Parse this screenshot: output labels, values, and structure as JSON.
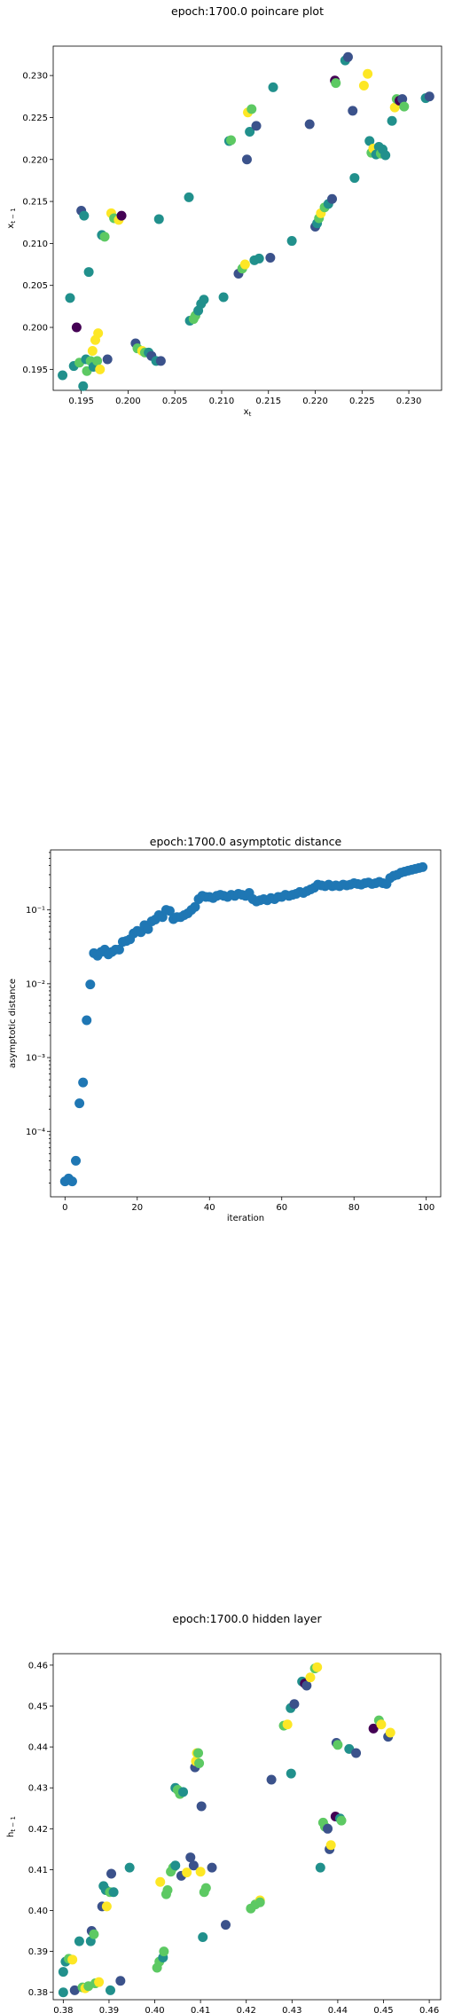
{
  "colors": {
    "palette": [
      "#440154",
      "#3b528b",
      "#21908c",
      "#5dc963",
      "#fde725"
    ],
    "blue": "#1f77b4"
  },
  "chart_data": [
    {
      "type": "scatter",
      "title": "epoch:1700.0 poincare plot",
      "xlabel": "x_t",
      "ylabel": "x_{t-1}",
      "xlim": [
        0.192,
        0.2335
      ],
      "ylim": [
        0.1925,
        0.2335
      ],
      "xticks": [
        "0.195",
        "0.200",
        "0.205",
        "0.210",
        "0.215",
        "0.220",
        "0.225",
        "0.230"
      ],
      "xtick_values": [
        0.195,
        0.2,
        0.205,
        0.21,
        0.215,
        0.22,
        0.225,
        0.23
      ],
      "yticks": [
        "0.195",
        "0.200",
        "0.205",
        "0.210",
        "0.215",
        "0.220",
        "0.225",
        "0.230"
      ],
      "ytick_values": [
        0.195,
        0.2,
        0.205,
        0.21,
        0.215,
        0.22,
        0.225,
        0.23
      ],
      "points": [
        [
          0.193,
          0.1943,
          2
        ],
        [
          0.1938,
          0.2035,
          2
        ],
        [
          0.1942,
          0.1954,
          2
        ],
        [
          0.1945,
          0.2,
          0
        ],
        [
          0.1948,
          0.1958,
          3
        ],
        [
          0.195,
          0.2139,
          1
        ],
        [
          0.1952,
          0.193,
          2
        ],
        [
          0.1953,
          0.2133,
          2
        ],
        [
          0.1955,
          0.1962,
          2
        ],
        [
          0.1956,
          0.1948,
          3
        ],
        [
          0.1958,
          0.2066,
          2
        ],
        [
          0.196,
          0.196,
          3
        ],
        [
          0.1962,
          0.1972,
          4
        ],
        [
          0.1963,
          0.1953,
          2
        ],
        [
          0.1965,
          0.1985,
          4
        ],
        [
          0.1967,
          0.196,
          3
        ],
        [
          0.1968,
          0.1993,
          4
        ],
        [
          0.197,
          0.195,
          4
        ],
        [
          0.1972,
          0.211,
          2
        ],
        [
          0.1975,
          0.2108,
          3
        ],
        [
          0.1978,
          0.1962,
          1
        ],
        [
          0.1982,
          0.2136,
          4
        ],
        [
          0.1985,
          0.213,
          3
        ],
        [
          0.199,
          0.2128,
          4
        ],
        [
          0.1993,
          0.2133,
          0
        ],
        [
          0.2008,
          0.1981,
          1
        ],
        [
          0.201,
          0.1975,
          3
        ],
        [
          0.2015,
          0.1972,
          4
        ],
        [
          0.2018,
          0.197,
          3
        ],
        [
          0.2022,
          0.197,
          2
        ],
        [
          0.2025,
          0.1966,
          1
        ],
        [
          0.203,
          0.196,
          2
        ],
        [
          0.2033,
          0.2129,
          2
        ],
        [
          0.2035,
          0.196,
          1
        ],
        [
          0.2065,
          0.2155,
          2
        ],
        [
          0.2066,
          0.2008,
          2
        ],
        [
          0.207,
          0.201,
          3
        ],
        [
          0.2072,
          0.2014,
          3
        ],
        [
          0.2075,
          0.202,
          2
        ],
        [
          0.2078,
          0.2028,
          2
        ],
        [
          0.2081,
          0.2033,
          2
        ],
        [
          0.2102,
          0.2036,
          2
        ],
        [
          0.2108,
          0.2222,
          2
        ],
        [
          0.211,
          0.2223,
          3
        ],
        [
          0.2118,
          0.2064,
          1
        ],
        [
          0.2122,
          0.207,
          3
        ],
        [
          0.2125,
          0.2075,
          4
        ],
        [
          0.2127,
          0.22,
          1
        ],
        [
          0.2128,
          0.2256,
          4
        ],
        [
          0.213,
          0.2233,
          2
        ],
        [
          0.2132,
          0.226,
          3
        ],
        [
          0.2135,
          0.208,
          2
        ],
        [
          0.2137,
          0.224,
          1
        ],
        [
          0.214,
          0.2082,
          2
        ],
        [
          0.2152,
          0.2083,
          1
        ],
        [
          0.2155,
          0.2286,
          2
        ],
        [
          0.2175,
          0.2103,
          2
        ],
        [
          0.2194,
          0.2242,
          1
        ],
        [
          0.22,
          0.212,
          1
        ],
        [
          0.2202,
          0.2124,
          2
        ],
        [
          0.2204,
          0.213,
          3
        ],
        [
          0.2206,
          0.2136,
          4
        ],
        [
          0.221,
          0.2143,
          3
        ],
        [
          0.2214,
          0.2147,
          2
        ],
        [
          0.2218,
          0.2153,
          1
        ],
        [
          0.2221,
          0.2294,
          0
        ],
        [
          0.2222,
          0.2291,
          3
        ],
        [
          0.2232,
          0.2318,
          2
        ],
        [
          0.2235,
          0.2322,
          1
        ],
        [
          0.224,
          0.2258,
          1
        ],
        [
          0.2242,
          0.2178,
          2
        ],
        [
          0.2252,
          0.2288,
          4
        ],
        [
          0.2256,
          0.2302,
          4
        ],
        [
          0.2258,
          0.2222,
          2
        ],
        [
          0.226,
          0.2208,
          3
        ],
        [
          0.2262,
          0.2213,
          4
        ],
        [
          0.2265,
          0.2206,
          2
        ],
        [
          0.2268,
          0.2215,
          2
        ],
        [
          0.227,
          0.2207,
          3
        ],
        [
          0.2272,
          0.2212,
          2
        ],
        [
          0.2275,
          0.2205,
          2
        ],
        [
          0.2282,
          0.2246,
          2
        ],
        [
          0.2285,
          0.2262,
          4
        ],
        [
          0.2287,
          0.2272,
          3
        ],
        [
          0.229,
          0.227,
          0
        ],
        [
          0.2293,
          0.2272,
          1
        ],
        [
          0.2295,
          0.2263,
          3
        ],
        [
          0.2318,
          0.2273,
          2
        ],
        [
          0.2322,
          0.2275,
          1
        ]
      ]
    },
    {
      "type": "scatter",
      "title": "epoch:1700.0 asymptotic distance",
      "xlabel": "iteration",
      "ylabel": "asymptotic distance",
      "yscale": "log",
      "xlim": [
        -4,
        104
      ],
      "ylim": [
        1.3e-05,
        0.65
      ],
      "xticks": [
        "0",
        "20",
        "40",
        "60",
        "80",
        "100"
      ],
      "xtick_values": [
        0,
        20,
        40,
        60,
        80,
        100
      ],
      "ytick_labels": [
        "10⁻⁴",
        "10⁻³",
        "10⁻²",
        "10⁻¹"
      ],
      "ytick_values": [
        0.0001,
        0.001,
        0.01,
        0.1
      ],
      "values": [
        2.1e-05,
        2.3e-05,
        2.1e-05,
        4e-05,
        0.00024,
        0.00046,
        0.0032,
        0.0098,
        0.026,
        0.024,
        0.027,
        0.029,
        0.025,
        0.027,
        0.029,
        0.029,
        0.037,
        0.038,
        0.04,
        0.048,
        0.052,
        0.05,
        0.062,
        0.055,
        0.07,
        0.074,
        0.085,
        0.08,
        0.1,
        0.097,
        0.075,
        0.08,
        0.08,
        0.085,
        0.09,
        0.1,
        0.11,
        0.14,
        0.155,
        0.15,
        0.15,
        0.145,
        0.155,
        0.16,
        0.155,
        0.15,
        0.16,
        0.155,
        0.165,
        0.16,
        0.155,
        0.17,
        0.14,
        0.13,
        0.135,
        0.14,
        0.135,
        0.145,
        0.14,
        0.15,
        0.15,
        0.16,
        0.155,
        0.16,
        0.165,
        0.175,
        0.17,
        0.18,
        0.19,
        0.2,
        0.22,
        0.215,
        0.21,
        0.22,
        0.21,
        0.215,
        0.21,
        0.22,
        0.215,
        0.22,
        0.23,
        0.225,
        0.22,
        0.23,
        0.235,
        0.225,
        0.23,
        0.24,
        0.23,
        0.225,
        0.235,
        0.24,
        0.23,
        0.245,
        0.24,
        0.235,
        0.25,
        0.255,
        0.26,
        0.27
      ],
      "note_values_tail": "last points rise to ~0.38"
    },
    {
      "type": "scatter",
      "title": "epoch:1700.0 hidden layer",
      "xlabel": "h_t",
      "ylabel": "h_{t-1}",
      "xlim": [
        0.3778,
        0.4625
      ],
      "ylim": [
        0.3782,
        0.4628
      ],
      "xticks": [
        "0.38",
        "0.39",
        "0.40",
        "0.41",
        "0.42",
        "0.43",
        "0.44",
        "0.45",
        "0.46"
      ],
      "xtick_values": [
        0.38,
        0.39,
        0.4,
        0.41,
        0.42,
        0.43,
        0.44,
        0.45,
        0.46
      ],
      "yticks": [
        "0.38",
        "0.39",
        "0.40",
        "0.41",
        "0.42",
        "0.43",
        "0.44",
        "0.45",
        "0.46"
      ],
      "ytick_values": [
        0.38,
        0.39,
        0.4,
        0.41,
        0.42,
        0.43,
        0.44,
        0.45,
        0.46
      ],
      "points": [
        [
          0.38,
          0.38,
          2
        ],
        [
          0.38,
          0.385,
          2
        ],
        [
          0.3805,
          0.3875,
          2
        ],
        [
          0.3812,
          0.3882,
          3
        ],
        [
          0.382,
          0.388,
          4
        ],
        [
          0.3825,
          0.3805,
          1
        ],
        [
          0.3835,
          0.3925,
          2
        ],
        [
          0.3842,
          0.3812,
          3
        ],
        [
          0.3848,
          0.381,
          4
        ],
        [
          0.3855,
          0.3815,
          3
        ],
        [
          0.386,
          0.3925,
          2
        ],
        [
          0.3862,
          0.395,
          1
        ],
        [
          0.3867,
          0.3942,
          3
        ],
        [
          0.387,
          0.3822,
          3
        ],
        [
          0.3878,
          0.3825,
          4
        ],
        [
          0.3885,
          0.401,
          1
        ],
        [
          0.3888,
          0.406,
          2
        ],
        [
          0.3893,
          0.405,
          2
        ],
        [
          0.3895,
          0.401,
          4
        ],
        [
          0.3902,
          0.4045,
          3
        ],
        [
          0.3903,
          0.3805,
          2
        ],
        [
          0.3905,
          0.409,
          1
        ],
        [
          0.391,
          0.4045,
          2
        ],
        [
          0.3925,
          0.3828,
          1
        ],
        [
          0.3945,
          0.4105,
          2
        ],
        [
          0.4005,
          0.386,
          3
        ],
        [
          0.401,
          0.3875,
          3
        ],
        [
          0.4012,
          0.407,
          4
        ],
        [
          0.4018,
          0.3885,
          2
        ],
        [
          0.402,
          0.39,
          3
        ],
        [
          0.4025,
          0.404,
          3
        ],
        [
          0.4028,
          0.405,
          3
        ],
        [
          0.4035,
          0.4095,
          3
        ],
        [
          0.404,
          0.4105,
          3
        ],
        [
          0.4045,
          0.411,
          2
        ],
        [
          0.4045,
          0.43,
          2
        ],
        [
          0.405,
          0.4295,
          3
        ],
        [
          0.4055,
          0.4285,
          3
        ],
        [
          0.4058,
          0.4085,
          1
        ],
        [
          0.4062,
          0.429,
          2
        ],
        [
          0.407,
          0.4093,
          4
        ],
        [
          0.4078,
          0.413,
          1
        ],
        [
          0.4085,
          0.411,
          1
        ],
        [
          0.4088,
          0.435,
          1
        ],
        [
          0.409,
          0.4365,
          4
        ],
        [
          0.4092,
          0.4385,
          4
        ],
        [
          0.4095,
          0.4385,
          3
        ],
        [
          0.4097,
          0.436,
          3
        ],
        [
          0.41,
          0.4095,
          4
        ],
        [
          0.4102,
          0.4255,
          1
        ],
        [
          0.4105,
          0.3935,
          2
        ],
        [
          0.4108,
          0.4045,
          3
        ],
        [
          0.4112,
          0.4055,
          3
        ],
        [
          0.4125,
          0.4105,
          1
        ],
        [
          0.4155,
          0.3965,
          1
        ],
        [
          0.421,
          0.4005,
          3
        ],
        [
          0.422,
          0.4015,
          3
        ],
        [
          0.423,
          0.4025,
          4
        ],
        [
          0.423,
          0.402,
          3
        ],
        [
          0.4255,
          0.432,
          1
        ],
        [
          0.4282,
          0.4452,
          3
        ],
        [
          0.429,
          0.4455,
          4
        ],
        [
          0.4297,
          0.4495,
          2
        ],
        [
          0.4298,
          0.4335,
          2
        ],
        [
          0.4305,
          0.4505,
          1
        ],
        [
          0.4322,
          0.456,
          2
        ],
        [
          0.4328,
          0.4555,
          0
        ],
        [
          0.4332,
          0.455,
          1
        ],
        [
          0.434,
          0.457,
          4
        ],
        [
          0.435,
          0.4592,
          3
        ],
        [
          0.4355,
          0.4595,
          4
        ],
        [
          0.4362,
          0.4105,
          2
        ],
        [
          0.4368,
          0.4215,
          3
        ],
        [
          0.4372,
          0.4205,
          3
        ],
        [
          0.4378,
          0.42,
          1
        ],
        [
          0.4382,
          0.415,
          1
        ],
        [
          0.4385,
          0.416,
          4
        ],
        [
          0.4395,
          0.423,
          0
        ],
        [
          0.4397,
          0.441,
          1
        ],
        [
          0.44,
          0.4405,
          3
        ],
        [
          0.4405,
          0.4225,
          2
        ],
        [
          0.4408,
          0.422,
          3
        ],
        [
          0.4425,
          0.4395,
          2
        ],
        [
          0.444,
          0.4385,
          1
        ],
        [
          0.4478,
          0.4445,
          0
        ],
        [
          0.449,
          0.4465,
          3
        ],
        [
          0.4495,
          0.4455,
          4
        ],
        [
          0.451,
          0.4425,
          1
        ],
        [
          0.4515,
          0.4435,
          4
        ]
      ]
    }
  ]
}
